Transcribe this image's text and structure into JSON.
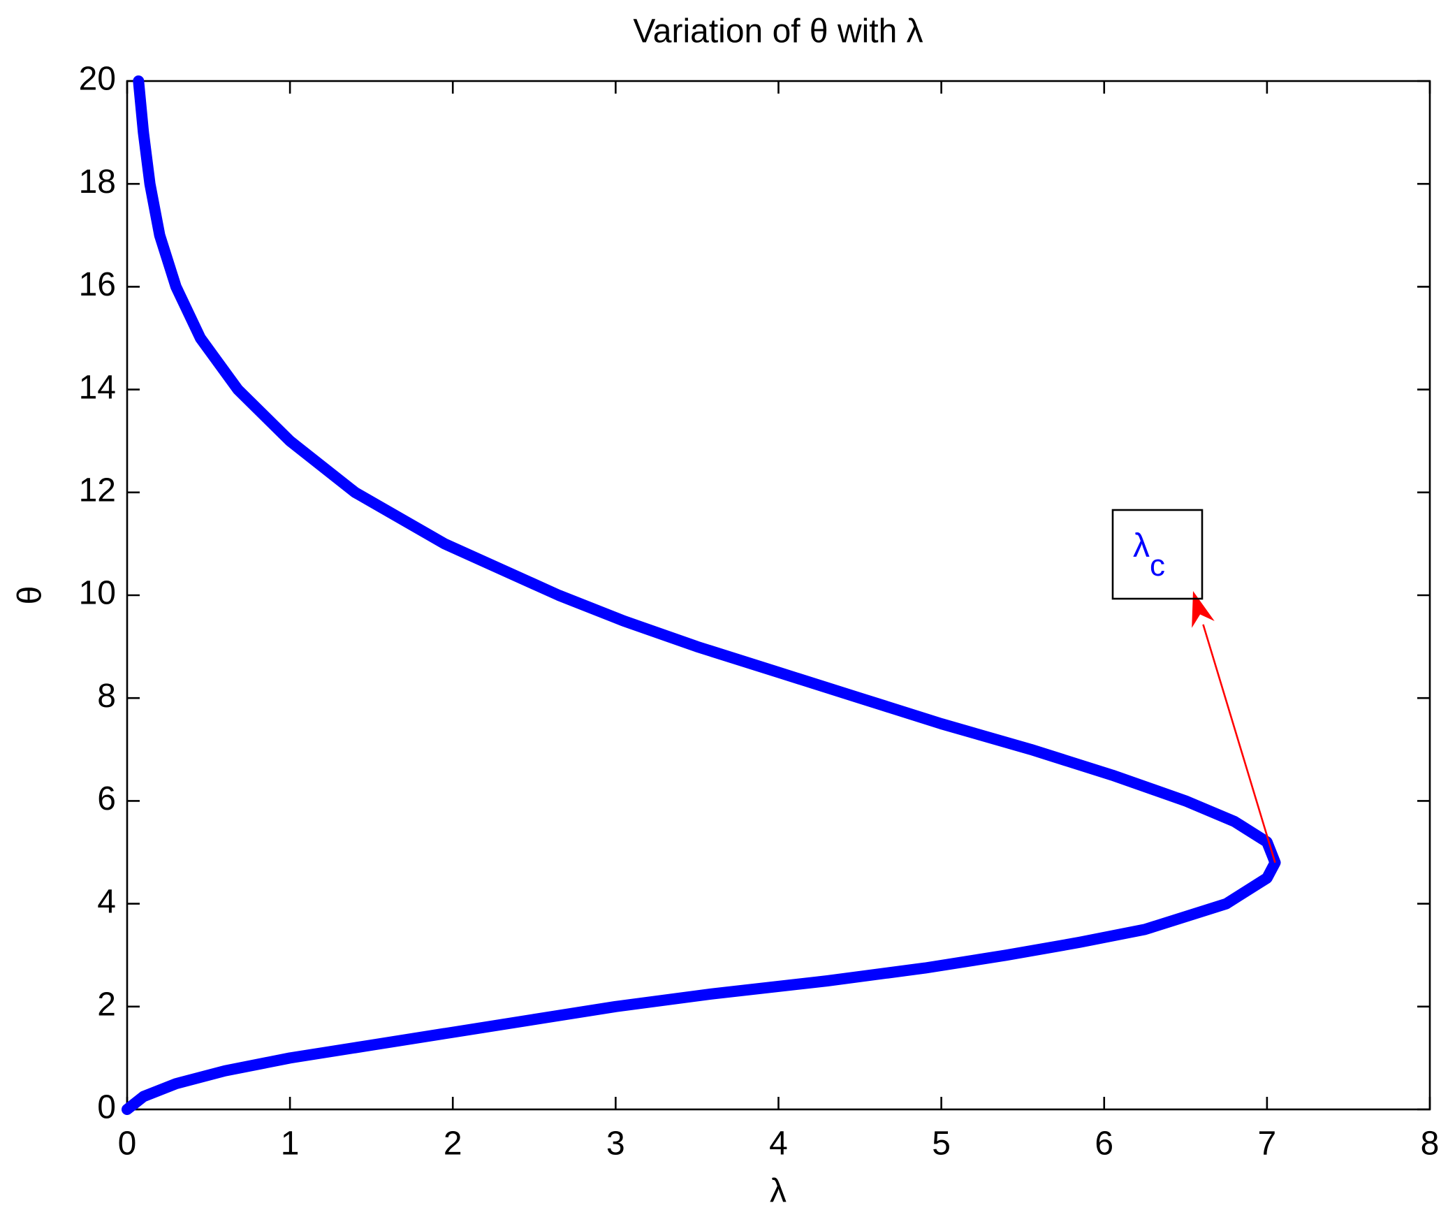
{
  "chart_data": {
    "type": "line",
    "title": "Variation of θ with λ",
    "xlabel": "λ",
    "ylabel": "θ",
    "x": [
      0,
      0.1,
      0.3,
      0.6,
      1.0,
      1.5,
      2.0,
      2.5,
      3.0,
      3.6,
      4.3,
      4.9,
      5.4,
      5.85,
      6.25,
      6.75,
      7.0,
      7.05,
      7.0,
      6.8,
      6.5,
      6.05,
      5.55,
      5.0,
      4.5,
      4.0,
      3.5,
      3.05,
      2.65,
      1.95,
      1.4,
      1.0,
      0.68,
      0.45,
      0.3,
      0.2,
      0.14,
      0.1,
      0.07
    ],
    "series": [
      {
        "color": "#0000ff",
        "values": [
          0,
          0.25,
          0.5,
          0.75,
          1.0,
          1.25,
          1.5,
          1.75,
          2.0,
          2.25,
          2.5,
          2.75,
          3.0,
          3.25,
          3.5,
          4.0,
          4.5,
          4.8,
          5.2,
          5.6,
          6.0,
          6.5,
          7.0,
          7.5,
          8.0,
          8.5,
          9.0,
          9.5,
          10,
          11,
          12,
          13,
          14,
          15,
          16,
          17,
          18,
          19,
          20
        ]
      }
    ],
    "xlim": [
      0,
      8
    ],
    "xticks": [
      0,
      1,
      2,
      3,
      4,
      5,
      6,
      7,
      8
    ],
    "ylim": [
      0,
      20
    ],
    "yticks": [
      0,
      2,
      4,
      6,
      8,
      10,
      12,
      14,
      16,
      18,
      20
    ],
    "annotation": {
      "text": "λ",
      "subscript": "c",
      "color": "#0000ff",
      "arrow_color": "#ff0000"
    }
  }
}
